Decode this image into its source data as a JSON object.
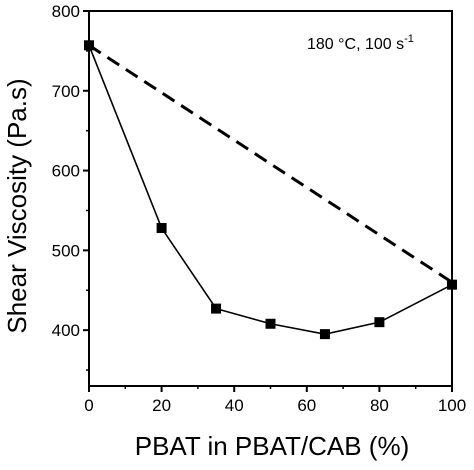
{
  "chart_data": {
    "type": "line",
    "xlabel": "PBAT in PBAT/CAB (%)",
    "ylabel": "Shear Viscosity (Pa.s)",
    "xlim": [
      0,
      100
    ],
    "ylim": [
      330,
      800
    ],
    "x_ticks": [
      0,
      20,
      40,
      60,
      80,
      100
    ],
    "y_ticks": [
      400,
      500,
      600,
      700,
      800
    ],
    "annotation": {
      "main": "180 °C, 100 s",
      "sup": "-1"
    },
    "series": [
      {
        "style": "solid",
        "marker": "square",
        "x": [
          0,
          20,
          35,
          50,
          65,
          80,
          100
        ],
        "y": [
          757,
          528,
          427,
          408,
          395,
          410,
          457
        ]
      },
      {
        "style": "dashed",
        "marker": "none",
        "x": [
          0,
          100
        ],
        "y": [
          757,
          460
        ]
      }
    ],
    "grid": false,
    "legend": "none"
  }
}
